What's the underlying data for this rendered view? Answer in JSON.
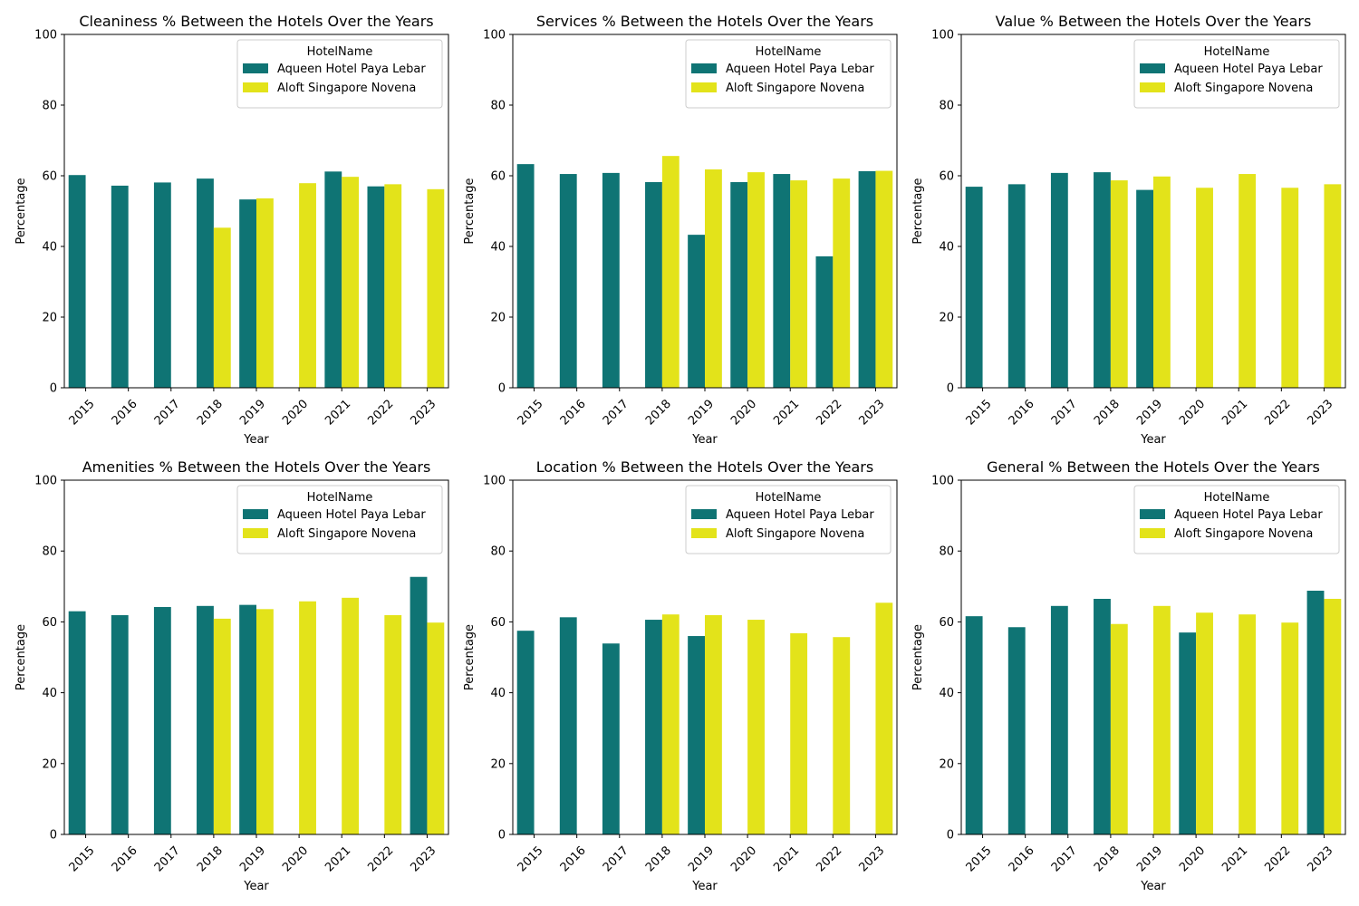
{
  "colors": {
    "aqueen": "#0f7474",
    "aloft": "#e3e31a"
  },
  "chart_data": [
    {
      "type": "bar",
      "title": "Cleaniness % Between the Hotels Over the Years",
      "xlabel": "Year",
      "ylabel": "Percentage",
      "ylim": [
        0,
        100
      ],
      "yticks": [
        "0",
        "20",
        "40",
        "60",
        "80",
        "100"
      ],
      "categories": [
        "2015",
        "2016",
        "2017",
        "2018",
        "2019",
        "2020",
        "2021",
        "2022",
        "2023"
      ],
      "legend": {
        "title": "HotelName",
        "placement": "top-right"
      },
      "series": [
        {
          "name": "Aqueen Hotel Paya Lebar",
          "color": "#0f7474",
          "values": [
            60.2,
            57.2,
            58.1,
            59.2,
            53.3,
            null,
            61.2,
            57.0,
            null
          ]
        },
        {
          "name": "Aloft Singapore Novena",
          "color": "#e3e31a",
          "values": [
            null,
            null,
            null,
            45.3,
            53.6,
            57.9,
            59.7,
            57.6,
            56.2
          ]
        }
      ]
    },
    {
      "type": "bar",
      "title": "Services % Between the Hotels Over the Years",
      "xlabel": "Year",
      "ylabel": "Percentage",
      "ylim": [
        0,
        100
      ],
      "yticks": [
        "0",
        "20",
        "40",
        "60",
        "80",
        "100"
      ],
      "categories": [
        "2015",
        "2016",
        "2017",
        "2018",
        "2019",
        "2020",
        "2021",
        "2022",
        "2023"
      ],
      "legend": {
        "title": "HotelName",
        "placement": "top-right"
      },
      "series": [
        {
          "name": "Aqueen Hotel Paya Lebar",
          "color": "#0f7474",
          "values": [
            63.3,
            60.5,
            60.8,
            58.2,
            43.3,
            58.2,
            60.5,
            37.2,
            61.3
          ]
        },
        {
          "name": "Aloft Singapore Novena",
          "color": "#e3e31a",
          "values": [
            null,
            null,
            null,
            65.6,
            61.8,
            61.0,
            58.7,
            59.2,
            61.4
          ]
        }
      ]
    },
    {
      "type": "bar",
      "title": "Value % Between the Hotels Over the Years",
      "xlabel": "Year",
      "ylabel": "Percentage",
      "ylim": [
        0,
        100
      ],
      "yticks": [
        "0",
        "20",
        "40",
        "60",
        "80",
        "100"
      ],
      "categories": [
        "2015",
        "2016",
        "2017",
        "2018",
        "2019",
        "2020",
        "2021",
        "2022",
        "2023"
      ],
      "legend": {
        "title": "HotelName",
        "placement": "top-right"
      },
      "series": [
        {
          "name": "Aqueen Hotel Paya Lebar",
          "color": "#0f7474",
          "values": [
            56.9,
            57.6,
            60.8,
            61.0,
            56.0,
            null,
            null,
            null,
            null
          ]
        },
        {
          "name": "Aloft Singapore Novena",
          "color": "#e3e31a",
          "values": [
            null,
            null,
            null,
            58.7,
            59.8,
            56.6,
            60.5,
            56.6,
            57.6
          ]
        }
      ]
    },
    {
      "type": "bar",
      "title": "Amenities % Between the Hotels Over the Years",
      "xlabel": "Year",
      "ylabel": "Percentage",
      "ylim": [
        0,
        100
      ],
      "yticks": [
        "0",
        "20",
        "40",
        "60",
        "80",
        "100"
      ],
      "categories": [
        "2015",
        "2016",
        "2017",
        "2018",
        "2019",
        "2020",
        "2021",
        "2022",
        "2023"
      ],
      "legend": {
        "title": "HotelName",
        "placement": "top-right"
      },
      "series": [
        {
          "name": "Aqueen Hotel Paya Lebar",
          "color": "#0f7474",
          "values": [
            63.0,
            61.9,
            64.2,
            64.5,
            64.8,
            null,
            null,
            null,
            72.7
          ]
        },
        {
          "name": "Aloft Singapore Novena",
          "color": "#e3e31a",
          "values": [
            null,
            null,
            null,
            60.9,
            63.6,
            65.8,
            66.8,
            61.9,
            59.8
          ]
        }
      ]
    },
    {
      "type": "bar",
      "title": "Location % Between the Hotels Over the Years",
      "xlabel": "Year",
      "ylabel": "Percentage",
      "ylim": [
        0,
        100
      ],
      "yticks": [
        "0",
        "20",
        "40",
        "60",
        "80",
        "100"
      ],
      "categories": [
        "2015",
        "2016",
        "2017",
        "2018",
        "2019",
        "2020",
        "2021",
        "2022",
        "2023"
      ],
      "legend": {
        "title": "HotelName",
        "placement": "top-right"
      },
      "series": [
        {
          "name": "Aqueen Hotel Paya Lebar",
          "color": "#0f7474",
          "values": [
            57.5,
            61.3,
            53.9,
            60.6,
            56.0,
            null,
            null,
            null,
            null
          ]
        },
        {
          "name": "Aloft Singapore Novena",
          "color": "#e3e31a",
          "values": [
            null,
            null,
            null,
            62.1,
            61.9,
            60.6,
            56.8,
            55.7,
            65.4
          ]
        }
      ]
    },
    {
      "type": "bar",
      "title": "General % Between the Hotels Over the Years",
      "xlabel": "Year",
      "ylabel": "Percentage",
      "ylim": [
        0,
        100
      ],
      "yticks": [
        "0",
        "20",
        "40",
        "60",
        "80",
        "100"
      ],
      "categories": [
        "2015",
        "2016",
        "2017",
        "2018",
        "2019",
        "2020",
        "2021",
        "2022",
        "2023"
      ],
      "legend": {
        "title": "HotelName",
        "placement": "top-right"
      },
      "series": [
        {
          "name": "Aqueen Hotel Paya Lebar",
          "color": "#0f7474",
          "values": [
            61.6,
            58.5,
            64.5,
            66.5,
            null,
            57.0,
            null,
            null,
            68.8
          ]
        },
        {
          "name": "Aloft Singapore Novena",
          "color": "#e3e31a",
          "values": [
            null,
            null,
            null,
            59.4,
            64.5,
            62.6,
            62.1,
            59.8,
            66.5
          ]
        }
      ]
    }
  ]
}
